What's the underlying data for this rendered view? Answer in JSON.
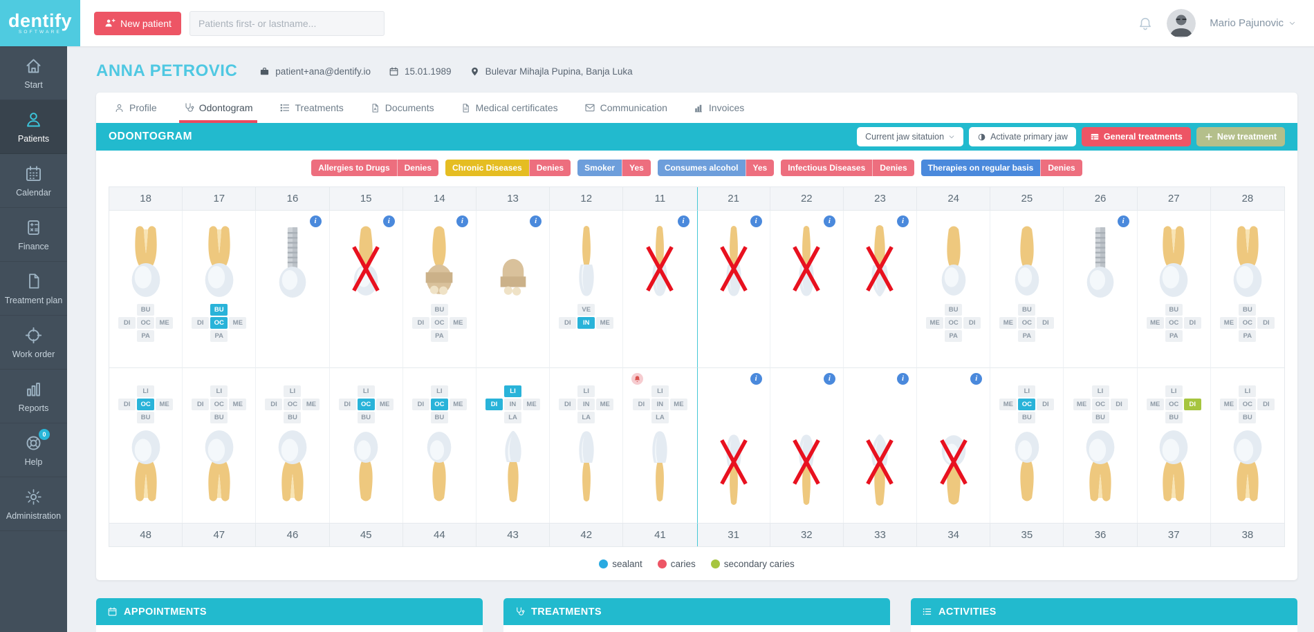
{
  "brand": {
    "logo_text": "dentify",
    "logo_subtext": "SOFTWARE"
  },
  "header": {
    "new_patient_label": "New patient",
    "search_placeholder": "Patients first- or lastname...",
    "user_name": "Mario Pajunovic"
  },
  "sidebar": {
    "items": [
      {
        "label": "Start",
        "icon": "home"
      },
      {
        "label": "Patients",
        "icon": "patients",
        "active": true
      },
      {
        "label": "Calendar",
        "icon": "calendar"
      },
      {
        "label": "Finance",
        "icon": "calculator"
      },
      {
        "label": "Treatment plan",
        "icon": "file"
      },
      {
        "label": "Work order",
        "icon": "crosshair"
      },
      {
        "label": "Reports",
        "icon": "bar-chart"
      },
      {
        "label": "Help",
        "icon": "life-ring",
        "badge": "0"
      },
      {
        "label": "Administration",
        "icon": "gear"
      }
    ]
  },
  "patient": {
    "name": "ANNA PETROVIC",
    "email": "patient+ana@dentify.io",
    "birth_date": "15.01.1989",
    "address": "Bulevar Mihajla Pupina, Banja Luka"
  },
  "tabs": [
    {
      "label": "Profile",
      "icon": "person"
    },
    {
      "label": "Odontogram",
      "icon": "stethoscope",
      "active": true
    },
    {
      "label": "Treatments",
      "icon": "list"
    },
    {
      "label": "Documents",
      "icon": "file"
    },
    {
      "label": "Medical certificates",
      "icon": "file-text"
    },
    {
      "label": "Communication",
      "icon": "envelope"
    },
    {
      "label": "Invoices",
      "icon": "bar-chart"
    }
  ],
  "odontogram": {
    "title": "ODONTOGRAM",
    "toolbar": {
      "jaw_select_label": "Current jaw sitatuion",
      "activate_primary_jaw_label": "Activate primary jaw",
      "general_treatments_label": "General treatments",
      "new_treatment_label": "New treatment"
    },
    "health_flags": [
      {
        "label": "Allergies to Drugs",
        "value": "Denies",
        "label_color": "#ed6e7e",
        "value_color": "#ed6e7e"
      },
      {
        "label": "Chronic Diseases",
        "value": "Denies",
        "label_color": "#e5bd22",
        "value_color": "#ed6e7e"
      },
      {
        "label": "Smoker",
        "value": "Yes",
        "label_color": "#6d9edb",
        "value_color": "#ed6e7e"
      },
      {
        "label": "Consumes alcohol",
        "value": "Yes",
        "label_color": "#6d9edb",
        "value_color": "#ed6e7e"
      },
      {
        "label": "Infectious Diseases",
        "value": "Denies",
        "label_color": "#ed6e7e",
        "value_color": "#ed6e7e"
      },
      {
        "label": "Therapies on regular basis",
        "value": "Denies",
        "label_color": "#4a89dc",
        "value_color": "#ed6e7e"
      }
    ],
    "upper_teeth": [
      {
        "number": "18",
        "type": "molar",
        "labels": {
          "top": {
            "text": "BU"
          },
          "mid": [
            {
              "text": "DI"
            },
            {
              "text": "OC"
            },
            {
              "text": "ME"
            }
          ],
          "bottom": {
            "text": "PA"
          }
        }
      },
      {
        "number": "17",
        "type": "molar",
        "labels": {
          "top": {
            "text": "BU",
            "state": "sealant"
          },
          "mid": [
            {
              "text": "DI"
            },
            {
              "text": "OC",
              "state": "sealant"
            },
            {
              "text": "ME"
            }
          ],
          "bottom": {
            "text": "PA"
          }
        }
      },
      {
        "number": "16",
        "type": "implant",
        "info": true
      },
      {
        "number": "15",
        "type": "premolar",
        "missing": true,
        "info": true
      },
      {
        "number": "14",
        "type": "crowned",
        "info": true,
        "labels": {
          "top": {
            "text": "BU"
          },
          "mid": [
            {
              "text": "DI"
            },
            {
              "text": "OC"
            },
            {
              "text": "ME"
            }
          ],
          "bottom": {
            "text": "PA"
          }
        }
      },
      {
        "number": "13",
        "type": "pontic",
        "info": true
      },
      {
        "number": "12",
        "type": "incisor",
        "labels": {
          "top": {
            "text": "VE"
          },
          "mid": [
            {
              "text": "DI"
            },
            {
              "text": "IN",
              "state": "sealant"
            },
            {
              "text": "ME"
            }
          ]
        }
      },
      {
        "number": "11",
        "type": "incisor",
        "missing": true,
        "info": true
      },
      {
        "number": "21",
        "type": "incisor",
        "missing": true,
        "info": true
      },
      {
        "number": "22",
        "type": "incisor",
        "missing": true,
        "info": true
      },
      {
        "number": "23",
        "type": "canine",
        "missing": true,
        "info": true
      },
      {
        "number": "24",
        "type": "premolar",
        "labels": {
          "top": {
            "text": "BU"
          },
          "mid": [
            {
              "text": "ME"
            },
            {
              "text": "OC"
            },
            {
              "text": "DI"
            }
          ],
          "bottom": {
            "text": "PA"
          }
        }
      },
      {
        "number": "25",
        "type": "premolar",
        "labels": {
          "top": {
            "text": "BU"
          },
          "mid": [
            {
              "text": "ME"
            },
            {
              "text": "OC"
            },
            {
              "text": "DI"
            }
          ],
          "bottom": {
            "text": "PA"
          }
        }
      },
      {
        "number": "26",
        "type": "implant",
        "info": true
      },
      {
        "number": "27",
        "type": "molar",
        "labels": {
          "top": {
            "text": "BU"
          },
          "mid": [
            {
              "text": "ME"
            },
            {
              "text": "OC"
            },
            {
              "text": "DI"
            }
          ],
          "bottom": {
            "text": "PA"
          }
        }
      },
      {
        "number": "28",
        "type": "molar",
        "labels": {
          "top": {
            "text": "BU"
          },
          "mid": [
            {
              "text": "ME"
            },
            {
              "text": "OC"
            },
            {
              "text": "DI"
            }
          ],
          "bottom": {
            "text": "PA"
          }
        }
      }
    ],
    "lower_teeth": [
      {
        "number": "48",
        "type": "molar",
        "labels": {
          "top": {
            "text": "LI"
          },
          "mid": [
            {
              "text": "DI"
            },
            {
              "text": "OC",
              "state": "sealant"
            },
            {
              "text": "ME"
            }
          ],
          "bottom": {
            "text": "BU"
          }
        }
      },
      {
        "number": "47",
        "type": "molar",
        "labels": {
          "top": {
            "text": "LI"
          },
          "mid": [
            {
              "text": "DI"
            },
            {
              "text": "OC"
            },
            {
              "text": "ME"
            }
          ],
          "bottom": {
            "text": "BU"
          }
        }
      },
      {
        "number": "46",
        "type": "molar",
        "labels": {
          "top": {
            "text": "LI"
          },
          "mid": [
            {
              "text": "DI"
            },
            {
              "text": "OC"
            },
            {
              "text": "ME"
            }
          ],
          "bottom": {
            "text": "BU"
          }
        }
      },
      {
        "number": "45",
        "type": "premolar",
        "labels": {
          "top": {
            "text": "LI"
          },
          "mid": [
            {
              "text": "DI"
            },
            {
              "text": "OC",
              "state": "sealant"
            },
            {
              "text": "ME"
            }
          ],
          "bottom": {
            "text": "BU"
          }
        }
      },
      {
        "number": "44",
        "type": "premolar",
        "labels": {
          "top": {
            "text": "LI"
          },
          "mid": [
            {
              "text": "DI"
            },
            {
              "text": "OC",
              "state": "sealant"
            },
            {
              "text": "ME"
            }
          ],
          "bottom": {
            "text": "BU"
          }
        }
      },
      {
        "number": "43",
        "type": "canine",
        "labels": {
          "top": {
            "text": "LI",
            "state": "sealant"
          },
          "mid": [
            {
              "text": "DI",
              "state": "sealant"
            },
            {
              "text": "IN"
            },
            {
              "text": "ME"
            }
          ],
          "bottom": {
            "text": "LA"
          }
        }
      },
      {
        "number": "42",
        "type": "incisor",
        "labels": {
          "top": {
            "text": "LI"
          },
          "mid": [
            {
              "text": "DI"
            },
            {
              "text": "IN"
            },
            {
              "text": "ME"
            }
          ],
          "bottom": {
            "text": "LA"
          }
        }
      },
      {
        "number": "41",
        "type": "incisor",
        "alert": true,
        "labels": {
          "top": {
            "text": "LI"
          },
          "mid": [
            {
              "text": "DI"
            },
            {
              "text": "IN"
            },
            {
              "text": "ME"
            }
          ],
          "bottom": {
            "text": "LA"
          }
        }
      },
      {
        "number": "31",
        "type": "incisor",
        "missing": true,
        "info": true
      },
      {
        "number": "32",
        "type": "incisor",
        "missing": true,
        "info": true
      },
      {
        "number": "33",
        "type": "canine",
        "missing": true,
        "info": true
      },
      {
        "number": "34",
        "type": "premolar",
        "missing": true,
        "info": true
      },
      {
        "number": "35",
        "type": "premolar",
        "labels": {
          "top": {
            "text": "LI"
          },
          "mid": [
            {
              "text": "ME"
            },
            {
              "text": "OC",
              "state": "sealant"
            },
            {
              "text": "DI"
            }
          ],
          "bottom": {
            "text": "BU"
          }
        }
      },
      {
        "number": "36",
        "type": "molar",
        "labels": {
          "top": {
            "text": "LI"
          },
          "mid": [
            {
              "text": "ME"
            },
            {
              "text": "OC"
            },
            {
              "text": "DI"
            }
          ],
          "bottom": {
            "text": "BU"
          }
        }
      },
      {
        "number": "37",
        "type": "molar",
        "labels": {
          "top": {
            "text": "LI"
          },
          "mid": [
            {
              "text": "ME"
            },
            {
              "text": "OC"
            },
            {
              "text": "DI",
              "state": "secondary"
            }
          ],
          "bottom": {
            "text": "BU"
          }
        }
      },
      {
        "number": "38",
        "type": "molar",
        "labels": {
          "top": {
            "text": "LI"
          },
          "mid": [
            {
              "text": "ME"
            },
            {
              "text": "OC"
            },
            {
              "text": "DI"
            }
          ],
          "bottom": {
            "text": "BU"
          }
        }
      }
    ],
    "legend": [
      {
        "label": "sealant",
        "color": "#29aae1"
      },
      {
        "label": "caries",
        "color": "#ed5565"
      },
      {
        "label": "secondary caries",
        "color": "#a6c53f"
      }
    ]
  },
  "panels": [
    {
      "title": "APPOINTMENTS",
      "icon": "calendar"
    },
    {
      "title": "TREATMENTS",
      "icon": "stethoscope"
    },
    {
      "title": "ACTIVITIES",
      "icon": "list"
    }
  ],
  "colors": {
    "brand_teal": "#4fcbe0",
    "section_bar_teal": "#22bace",
    "accent_red": "#ed5565",
    "info_blue": "#4a89dc",
    "new_treatment_olive": "#b4bf8b",
    "sealant_blue": "#29b3d9",
    "secondary_caries_green": "#a6c53f",
    "missing_x_red": "#e8111f"
  }
}
